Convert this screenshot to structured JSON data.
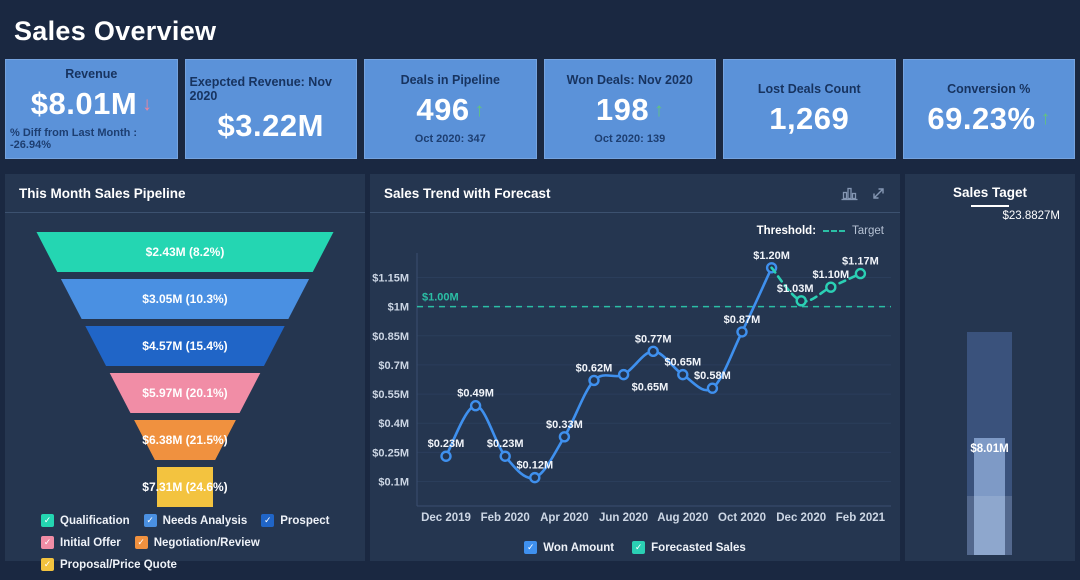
{
  "page": {
    "title": "Sales Overview"
  },
  "theme": {
    "page_bg": "#1a2841",
    "panel_bg": "#253650",
    "card_bg": "#5b92d9",
    "up_arrow": "#63c57c",
    "down_arrow": "#f2849b",
    "won_line": "#3f90ee",
    "forecast_line": "#2bd0b4",
    "threshold_line": "#2bbfa5"
  },
  "kpi_cards": [
    {
      "title": "Revenue",
      "value": "$8.01M",
      "trend": "down",
      "subtext": "% Diff from Last Month : -26.94%"
    },
    {
      "title": "Exepcted Revenue: Nov 2020",
      "value": "$3.22M",
      "trend": null,
      "subtext": ""
    },
    {
      "title": "Deals in Pipeline",
      "value": "496",
      "trend": "up",
      "subtext": "Oct 2020: 347"
    },
    {
      "title": "Won Deals: Nov 2020",
      "value": "198",
      "trend": "up",
      "subtext": "Oct 2020: 139"
    },
    {
      "title": "Lost Deals Count",
      "value": "1,269",
      "trend": null,
      "subtext": ""
    },
    {
      "title": "Conversion %",
      "value": "69.23%",
      "trend": "up",
      "subtext": ""
    }
  ],
  "funnel_panel": {
    "title": "This Month Sales Pipeline"
  },
  "trend_panel": {
    "title": "Sales Trend with Forecast",
    "threshold_label": "Threshold:",
    "threshold_target_label": "Target",
    "icons": [
      "bar-chart-icon",
      "expand-icon"
    ]
  },
  "target_panel": {
    "title": "Sales Taget",
    "target_label": "$23.8827M",
    "actual_label": "$8.01M"
  },
  "chart_data": [
    {
      "type": "funnel",
      "title": "This Month Sales Pipeline",
      "stages": [
        {
          "label": "Qualification",
          "value_label": "$2.43M (8.2%)",
          "value": 2.43,
          "pct": 8.2,
          "color": "#24d6b2"
        },
        {
          "label": "Needs Analysis",
          "value_label": "$3.05M (10.3%)",
          "value": 3.05,
          "pct": 10.3,
          "color": "#4a90e2"
        },
        {
          "label": "Prospect",
          "value_label": "$4.57M (15.4%)",
          "value": 4.57,
          "pct": 15.4,
          "color": "#2065c7"
        },
        {
          "label": "Initial Offer",
          "value_label": "$5.97M (20.1%)",
          "value": 5.97,
          "pct": 20.1,
          "color": "#f18da6"
        },
        {
          "label": "Negotiation/Review",
          "value_label": "$6.38M (21.5%)",
          "value": 6.38,
          "pct": 21.5,
          "color": "#f0913f"
        },
        {
          "label": "Proposal/Price Quote",
          "value_label": "$7.31M (24.6%)",
          "value": 7.31,
          "pct": 24.6,
          "color": "#f3c33f"
        }
      ]
    },
    {
      "type": "line",
      "title": "Sales Trend with Forecast",
      "x": [
        "Dec 2019",
        "Jan 2020",
        "Feb 2020",
        "Mar 2020",
        "Apr 2020",
        "May 2020",
        "Jun 2020",
        "Jul 2020",
        "Aug 2020",
        "Sep 2020",
        "Oct 2020",
        "Nov 2020",
        "Dec 2020",
        "Jan 2021",
        "Feb 2021"
      ],
      "x_tick_indices": [
        0,
        2,
        4,
        6,
        8,
        10,
        12,
        14
      ],
      "y_ticks": [
        "$0.1M",
        "$0.25M",
        "$0.4M",
        "$0.55M",
        "$0.7M",
        "$0.85M",
        "$1M",
        "$1.15M"
      ],
      "y_tick_values": [
        0.1,
        0.25,
        0.4,
        0.55,
        0.7,
        0.85,
        1.0,
        1.15
      ],
      "ylim": [
        0.0,
        1.25
      ],
      "series": [
        {
          "name": "Won Amount",
          "color": "#3f90ee",
          "style": "solid",
          "start_index": 0,
          "values": [
            0.23,
            0.49,
            0.23,
            0.12,
            0.33,
            0.62,
            0.65,
            0.77,
            0.65,
            0.58,
            0.87,
            1.2
          ],
          "labels": [
            "$0.23M",
            "$0.49M",
            "$0.23M",
            "$0.12M",
            "$0.33M",
            "$0.62M",
            "$0.65M",
            "$0.77M",
            "$0.65M",
            "$0.58M",
            "$0.87M",
            "$1.20M"
          ]
        },
        {
          "name": "Forecasted Sales",
          "color": "#2bd0b4",
          "style": "dashed",
          "start_index": 11,
          "values": [
            1.2,
            1.03,
            1.1,
            1.17
          ],
          "labels": [
            "",
            "$1.03M",
            "$1.10M",
            "$1.17M"
          ]
        }
      ],
      "threshold": {
        "value": 1.0,
        "label": "$1.00M",
        "name": "Target",
        "color": "#2bbfa5"
      },
      "legend_position": "bottom"
    },
    {
      "type": "bullet",
      "title": "Sales Taget",
      "target_value": 23.8827,
      "target_label": "$23.8827M",
      "actual_value": 8.01,
      "actual_label": "$8.01M"
    }
  ]
}
